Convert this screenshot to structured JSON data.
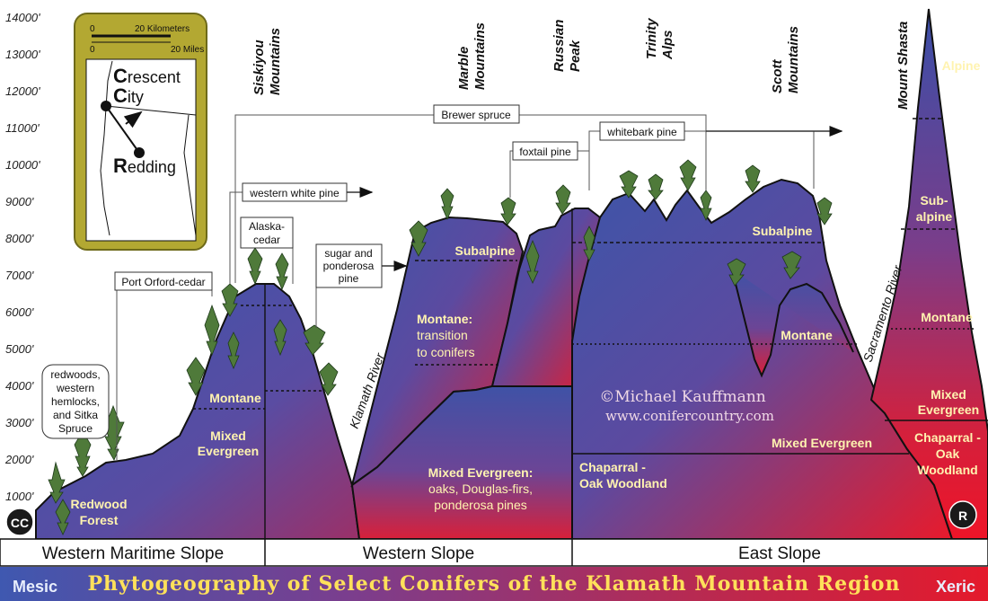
{
  "altitudes": [
    "14000'",
    "13000'",
    "12000'",
    "11000'",
    "10000'",
    "9000'",
    "8000'",
    "7000'",
    "6000'",
    "5000'",
    "4000'",
    "3000'",
    "2000'",
    "1000'"
  ],
  "ranges": [
    "Siskiyou Mountains",
    "Marble Mountains",
    "Russian Peak",
    "Trinity Alps",
    "Scott Mountains",
    "Mount Shasta"
  ],
  "species_labels": {
    "brewer": "Brewer spruce",
    "whitebark": "whitebark pine",
    "foxtail": "foxtail pine",
    "western_white": "western white pine",
    "alaska_line1": "Alaska-",
    "alaska_line2": "cedar",
    "sugar_line1": "sugar and",
    "sugar_line2": "ponderosa",
    "sugar_line3": "pine",
    "port_orford": "Port Orford-cedar",
    "redwoods_line1": "redwoods,",
    "redwoods_line2": "western",
    "redwoods_line3": "hemlocks,",
    "redwoods_line4": "and Sitka",
    "redwoods_line5": "Spruce"
  },
  "zones": {
    "redwood_forest_1": "Redwood",
    "redwood_forest_2": "Forest",
    "montane_west": "Montane",
    "mixed_evergreen_west_1": "Mixed",
    "mixed_evergreen_west_2": "Evergreen",
    "subalpine_marble": "Subalpine",
    "montane_transition_1": "Montane:",
    "montane_transition_2": "transition",
    "montane_transition_3": "to conifers",
    "mixed_oaks_1": "Mixed Evergreen:",
    "mixed_oaks_2": "oaks, Douglas-firs,",
    "mixed_oaks_3": "ponderosa pines",
    "subalpine_scott": "Subalpine",
    "montane_east": "Montane",
    "mixed_evergreen_east": "Mixed Evergreen",
    "chaparral_east_1": "Chaparral -",
    "chaparral_east_2": "Oak Woodland",
    "alpine": "Alpine",
    "subalpine_shasta_1": "Sub-",
    "subalpine_shasta_2": "alpine",
    "montane_shasta": "Montane",
    "mixed_shasta_1": "Mixed",
    "mixed_shasta_2": "Evergreen",
    "chaparral_shasta_1": "Chaparral -",
    "chaparral_shasta_2": "Oak",
    "chaparral_shasta_3": "Woodland"
  },
  "rivers": {
    "klamath": "Klamath River",
    "sacramento": "Sacramento River"
  },
  "map": {
    "scale_km": "20 Kilometers",
    "scale_mi": "20 Miles",
    "scale_zero": "0",
    "crescent_c1": "C",
    "crescent_rest1": "rescent",
    "crescent_c2": "C",
    "crescent_rest2": "ity",
    "redding_r": "R",
    "redding_rest": "edding"
  },
  "endpoints": {
    "cc": "CC",
    "r": "R"
  },
  "copyright": {
    "line1": "©Michael Kauffmann",
    "line2": "www.conifercountry.com"
  },
  "slopes": [
    "Western Maritime Slope",
    "Western Slope",
    "East Slope"
  ],
  "title_bar": {
    "left": "Mesic",
    "title": "Phytogeography of Select Conifers of the Klamath Mountain Region",
    "right": "Xeric"
  },
  "colors": {
    "mesic_blue": "#4a5aa8",
    "xeric_red": "#e01428",
    "map_frame": "#b3a832",
    "title_yellow": "#ffe15a"
  }
}
